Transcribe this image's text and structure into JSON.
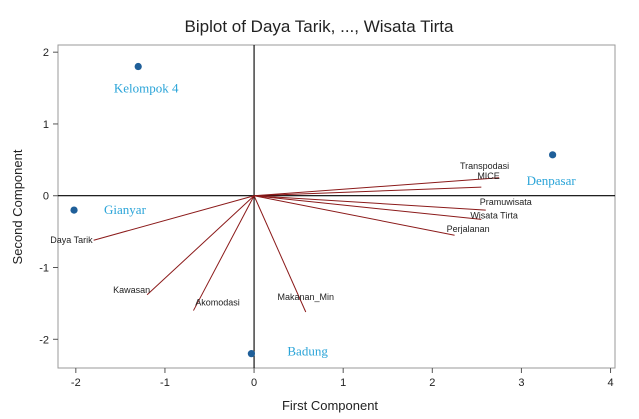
{
  "chart_data": {
    "type": "scatter",
    "title": "Biplot of Daya Tarik, ..., Wisata Tirta",
    "xlabel": "First Component",
    "ylabel": "Second Component",
    "xlim": [
      -2.2,
      4.05
    ],
    "ylim": [
      -2.4,
      2.1
    ],
    "xticks": [
      -2,
      -1,
      0,
      1,
      2,
      3,
      4
    ],
    "yticks": [
      -2,
      -1,
      0,
      1,
      2
    ],
    "grid": false,
    "legend": "none",
    "colors": {
      "vector": "#8b1a1a",
      "observation_point": "#1f5f99",
      "observation_label": "#2aa4d8",
      "axis_ref": "#000000"
    },
    "observations": [
      {
        "name": "Kelompok 4",
        "x": -1.3,
        "y": 1.8
      },
      {
        "name": "Gianyar",
        "x": -2.02,
        "y": -0.2
      },
      {
        "name": "Badung",
        "x": -0.03,
        "y": -2.2
      },
      {
        "name": "Denpasar",
        "x": 3.35,
        "y": 0.57
      }
    ],
    "loadings": [
      {
        "name": "Daya Tarik",
        "x": -1.8,
        "y": -0.62
      },
      {
        "name": "Kawasan",
        "x": -1.2,
        "y": -1.38
      },
      {
        "name": "Akomodasi",
        "x": -0.68,
        "y": -1.6
      },
      {
        "name": "Makanan_Min",
        "x": 0.58,
        "y": -1.62
      },
      {
        "name": "Transpodasi",
        "x": 2.75,
        "y": 0.25
      },
      {
        "name": "MICE",
        "x": 2.55,
        "y": 0.12
      },
      {
        "name": "Pramuwisata",
        "x": 2.6,
        "y": -0.2
      },
      {
        "name": "Wisata Tirta",
        "x": 2.55,
        "y": -0.33
      },
      {
        "name": "Perjalanan",
        "x": 2.25,
        "y": -0.55
      }
    ]
  }
}
